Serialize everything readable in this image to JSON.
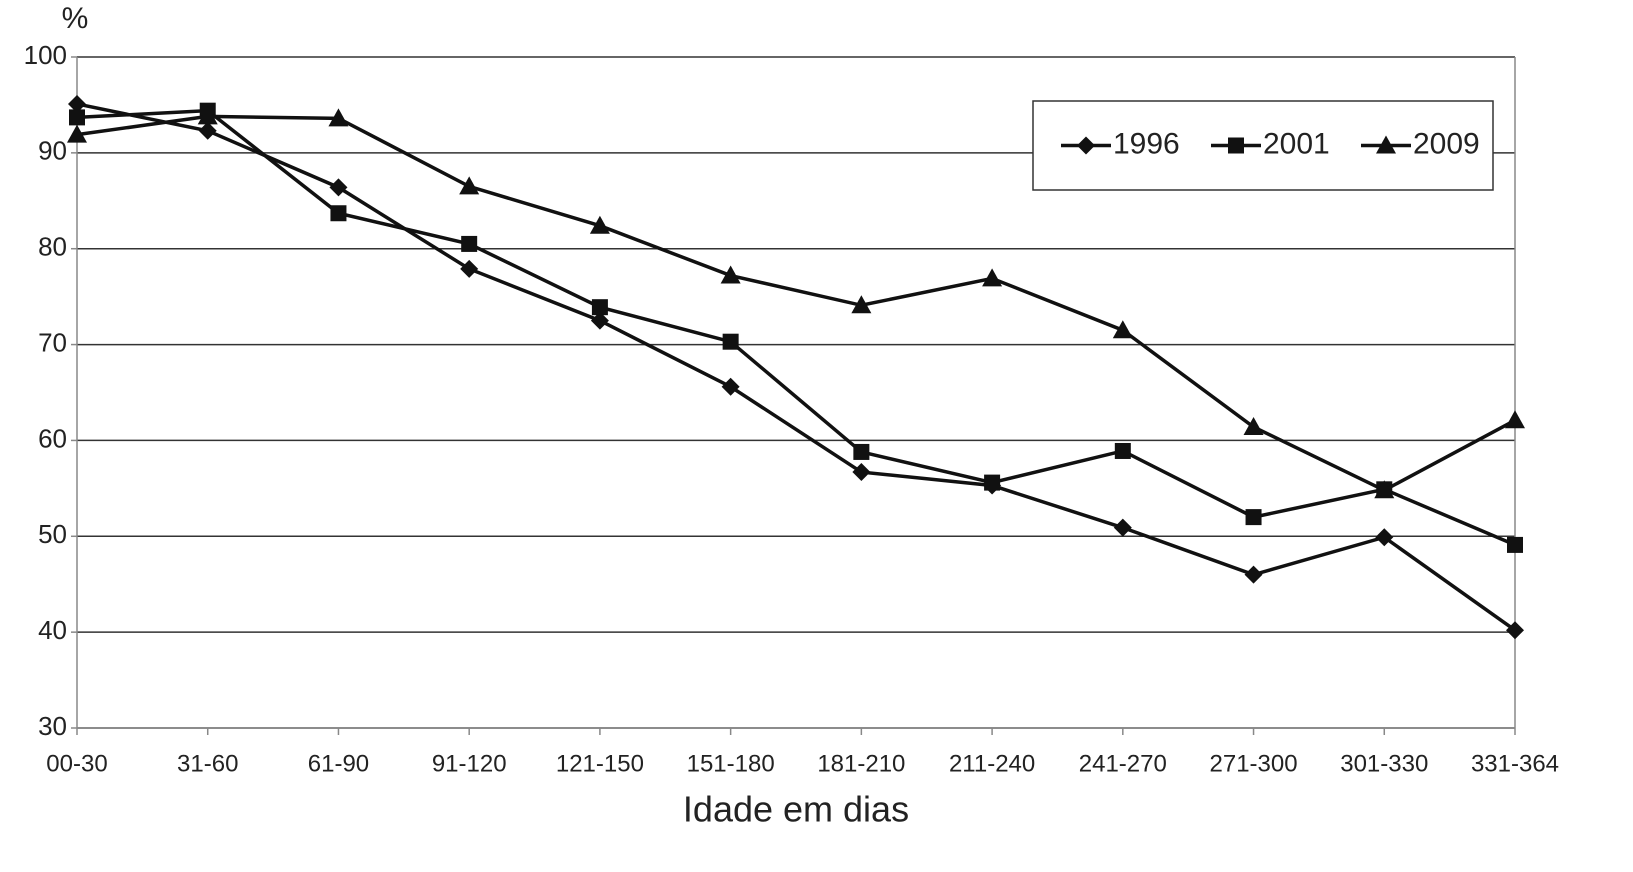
{
  "chart_data": {
    "type": "line",
    "title": "%",
    "x_label": "Idade em dias",
    "categories": [
      "00-30",
      "31-60",
      "61-90",
      "91-120",
      "121-150",
      "151-180",
      "181-210",
      "211-240",
      "241-270",
      "271-300",
      "301-330",
      "331-364"
    ],
    "series": [
      {
        "name": "1996",
        "color": "#111111",
        "marker": "diamond",
        "values": [
          95.1,
          92.3,
          86.4,
          77.9,
          72.5,
          65.6,
          56.7,
          55.3,
          50.9,
          46.0,
          49.9,
          40.2
        ]
      },
      {
        "name": "2001",
        "color": "#111111",
        "marker": "square",
        "values": [
          93.7,
          94.4,
          83.7,
          80.5,
          73.9,
          70.3,
          58.8,
          55.6,
          58.9,
          52.0,
          54.9,
          49.1
        ]
      },
      {
        "name": "2009",
        "color": "#111111",
        "marker": "triangle",
        "values": [
          91.9,
          93.8,
          93.6,
          86.5,
          82.4,
          77.2,
          74.1,
          76.9,
          71.5,
          61.4,
          54.8,
          62.1
        ]
      }
    ],
    "ylim": [
      30,
      100
    ],
    "yticks": [
      30,
      40,
      50,
      60,
      70,
      80,
      90,
      100
    ],
    "grid": true,
    "legend": "upper right"
  }
}
